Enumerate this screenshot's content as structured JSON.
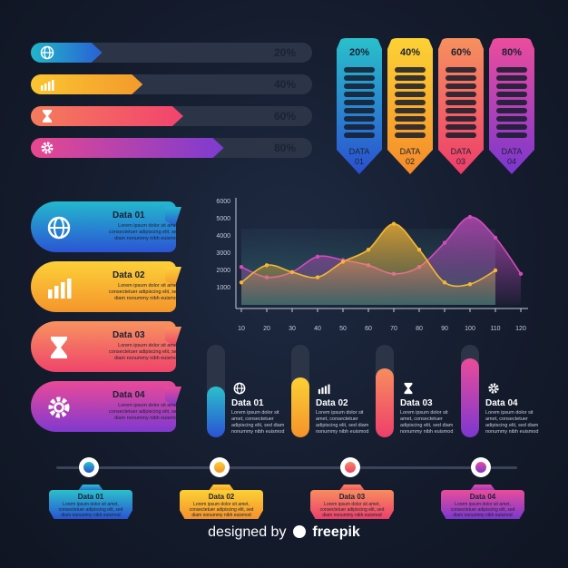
{
  "progress_bars": [
    {
      "label": "20%",
      "icon": "globe-icon",
      "value": 20,
      "colors": [
        "#22b6c9",
        "#2a5fd6"
      ]
    },
    {
      "label": "40%",
      "icon": "bar-chart-icon",
      "value": 40,
      "colors": [
        "#fbc531",
        "#f39a2c"
      ]
    },
    {
      "label": "60%",
      "icon": "hourglass-icon",
      "value": 60,
      "colors": [
        "#f57c5c",
        "#f2436e"
      ]
    },
    {
      "label": "80%",
      "icon": "gear-icon",
      "value": 80,
      "colors": [
        "#e7488f",
        "#7d3bd1"
      ]
    }
  ],
  "thermometers": [
    {
      "pct": "20%",
      "label_line1": "DATA",
      "label_line2": "01",
      "colors": [
        "#29c0cb",
        "#2a4fd1"
      ]
    },
    {
      "pct": "40%",
      "label_line1": "DATA",
      "label_line2": "02",
      "colors": [
        "#fcd235",
        "#f58a2a"
      ]
    },
    {
      "pct": "60%",
      "label_line1": "DATA",
      "label_line2": "03",
      "colors": [
        "#f6905e",
        "#ef3d6b"
      ]
    },
    {
      "pct": "80%",
      "label_line1": "DATA",
      "label_line2": "04",
      "colors": [
        "#ec4c9c",
        "#7a36d0"
      ]
    }
  ],
  "callouts": [
    {
      "title": "Data 01",
      "text": "Lorem ipsum dolor sit amet, consectetuer adipiscing elit, sed diam nonummy nibh euismod",
      "icon": "globe-icon",
      "colors": [
        "#23b8cd",
        "#2b55d4"
      ]
    },
    {
      "title": "Data 02",
      "text": "Lorem ipsum dolor sit amet, consectetuer adipiscing elit, sed diam nonummy nibh euismod",
      "icon": "bar-chart-icon",
      "colors": [
        "#fcd038",
        "#f5952c"
      ]
    },
    {
      "title": "Data 03",
      "text": "Lorem ipsum dolor sit amet, consectetuer adipiscing elit, sed diam nonummy nibh euismod",
      "icon": "hourglass-icon",
      "colors": [
        "#f7935f",
        "#ef446a"
      ]
    },
    {
      "title": "Data 04",
      "text": "Lorem ipsum dolor sit amet, consectetuer adipiscing elit, sed diam nonummy nibh euismod",
      "icon": "gear-icon",
      "colors": [
        "#ea4a97",
        "#8039cf"
      ]
    }
  ],
  "vertical_bars": [
    {
      "title": "Data 01",
      "text": "Lorem ipsum dolor sit amet, consectetuer adipiscing elit, sed diam nonummy nibh euismod",
      "icon": "globe-icon",
      "value": 0.55,
      "colors": [
        "#2bc0cb",
        "#2a53d3"
      ]
    },
    {
      "title": "Data 02",
      "text": "Lorem ipsum dolor sit amet, consectetuer adipiscing elit, sed diam nonummy nibh euismod",
      "icon": "bar-chart-icon",
      "value": 0.65,
      "colors": [
        "#fcd035",
        "#f5922b"
      ]
    },
    {
      "title": "Data 03",
      "text": "Lorem ipsum dolor sit amet, consectetuer adipiscing elit, sed diam nonummy nibh euismod",
      "icon": "hourglass-icon",
      "value": 0.75,
      "colors": [
        "#f78d5e",
        "#ee3f6b"
      ]
    },
    {
      "title": "Data 04",
      "text": "Lorem ipsum dolor sit amet, consectetuer adipiscing elit, sed diam nonummy nibh euismod",
      "icon": "gear-icon",
      "value": 0.85,
      "colors": [
        "#ea4c9a",
        "#7c37d0"
      ]
    }
  ],
  "timeline": [
    {
      "title": "Data 01",
      "text": "Lorem ipsum dolor sit amet, consectetuer adipiscing elit, sed diam nonummy nibh euismod",
      "colors": [
        "#2bc0cb",
        "#2a53d3"
      ]
    },
    {
      "title": "Data 02",
      "text": "Lorem ipsum dolor sit amet, consectetuer adipiscing elit, sed diam nonummy nibh euismod",
      "colors": [
        "#fcd035",
        "#f5922b"
      ]
    },
    {
      "title": "Data 03",
      "text": "Lorem ipsum dolor sit amet, consectetuer adipiscing elit, sed diam nonummy nibh euismod",
      "colors": [
        "#f78d5e",
        "#ee3f6b"
      ]
    },
    {
      "title": "Data 04",
      "text": "Lorem ipsum dolor sit amet, consectetuer adipiscing elit, sed diam nonummy nibh euismod",
      "colors": [
        "#ea4c9a",
        "#7c37d0"
      ]
    }
  ],
  "chart_data": {
    "type": "area",
    "x": [
      10,
      20,
      30,
      40,
      50,
      60,
      70,
      80,
      90,
      100,
      110,
      120
    ],
    "xlim": [
      10,
      120
    ],
    "ylim": [
      0,
      6000
    ],
    "x_ticks": [
      "10",
      "20",
      "30",
      "40",
      "50",
      "60",
      "70",
      "80",
      "90",
      "100",
      "110",
      "120"
    ],
    "y_ticks": [
      "1000",
      "2000",
      "3000",
      "4000",
      "5000",
      "6000"
    ],
    "series": [
      {
        "x": [
          10,
          20,
          30,
          40,
          50,
          60,
          70,
          80,
          90,
          100,
          110
        ],
        "values": [
          1300,
          2300,
          1900,
          1600,
          2500,
          3200,
          4700,
          3200,
          1300,
          1200,
          2000
        ],
        "color": "#f7b733"
      },
      {
        "x": [
          10,
          20,
          30,
          40,
          50,
          60,
          70,
          80,
          90,
          100,
          110,
          120
        ],
        "values": [
          2200,
          1600,
          1900,
          2800,
          2600,
          2300,
          1800,
          2200,
          3600,
          5100,
          3900,
          1800
        ],
        "color": "#d24dba"
      }
    ],
    "grid": false
  },
  "footer": {
    "prefix": "designed by",
    "brand": "freepik"
  }
}
